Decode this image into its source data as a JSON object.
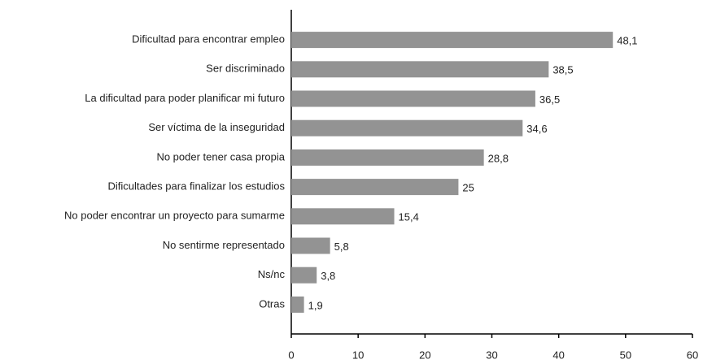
{
  "chart_data": {
    "type": "bar",
    "orientation": "horizontal",
    "categories": [
      "Dificultad para encontrar empleo",
      "Ser discriminado",
      "La dificultad para poder planificar mi futuro",
      "Ser víctima de la inseguridad",
      "No poder tener casa propia",
      "Dificultades para finalizar los estudios",
      "No poder encontrar un proyecto para sumarme",
      "No sentirme representado",
      "Ns/nc",
      "Otras"
    ],
    "values": [
      48.1,
      38.5,
      36.5,
      34.6,
      28.8,
      25,
      15.4,
      5.8,
      3.8,
      1.9
    ],
    "value_labels": [
      "48,1",
      "38,5",
      "36,5",
      "34,6",
      "28,8",
      "25",
      "15,4",
      "5,8",
      "3,8",
      "1,9"
    ],
    "color": "#939393",
    "xlim": [
      0,
      60
    ],
    "xticks": [
      0,
      10,
      20,
      30,
      40,
      50,
      60
    ],
    "grid": false
  }
}
